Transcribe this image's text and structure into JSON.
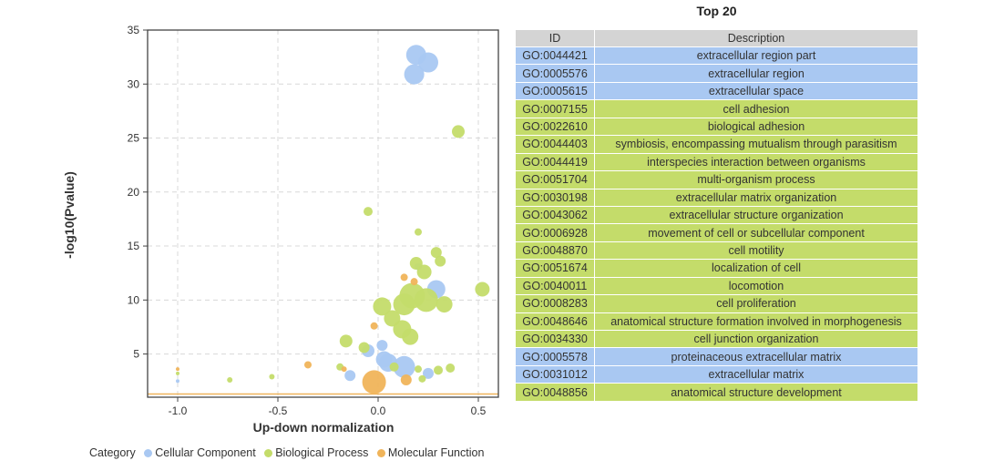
{
  "chart_data": {
    "type": "scatter",
    "xlabel": "Up-down normalization",
    "ylabel": "-log10(Pvalue)",
    "xlim": [
      -1.15,
      0.6
    ],
    "ylim": [
      1,
      35
    ],
    "x_ticks": [
      -1.0,
      -0.5,
      0.0,
      0.5
    ],
    "x_tick_labels": [
      "-1.0",
      "-0.5",
      "0.0",
      "0.5"
    ],
    "y_ticks": [
      5,
      10,
      15,
      20,
      25,
      30,
      35
    ],
    "y_tick_labels": [
      "5",
      "10",
      "15",
      "20",
      "25",
      "30",
      "35"
    ],
    "threshold_y": 1.3,
    "grid": true,
    "legend_title": "Category",
    "legend_position": "bottom-left",
    "series": [
      {
        "name": "Cellular Component",
        "color": "#a9c8f2",
        "points": [
          {
            "x": 0.19,
            "y": 32.7,
            "size": 11
          },
          {
            "x": 0.25,
            "y": 32.0,
            "size": 11
          },
          {
            "x": 0.18,
            "y": 30.9,
            "size": 11
          },
          {
            "x": 0.2,
            "y": 13.1,
            "size": 4
          },
          {
            "x": 0.29,
            "y": 11.0,
            "size": 10
          },
          {
            "x": 0.02,
            "y": 5.8,
            "size": 6
          },
          {
            "x": -0.05,
            "y": 5.3,
            "size": 7
          },
          {
            "x": 0.03,
            "y": 4.5,
            "size": 9
          },
          {
            "x": 0.05,
            "y": 4.2,
            "size": 10
          },
          {
            "x": 0.13,
            "y": 3.8,
            "size": 12
          },
          {
            "x": -0.14,
            "y": 3.0,
            "size": 6
          },
          {
            "x": 0.25,
            "y": 3.2,
            "size": 6
          },
          {
            "x": -1.0,
            "y": 2.5,
            "size": 2
          }
        ]
      },
      {
        "name": "Biological Process",
        "color": "#c4dc6a",
        "points": [
          {
            "x": 0.4,
            "y": 25.6,
            "size": 7
          },
          {
            "x": -0.05,
            "y": 18.2,
            "size": 5
          },
          {
            "x": 0.2,
            "y": 16.3,
            "size": 4
          },
          {
            "x": 0.29,
            "y": 14.4,
            "size": 6
          },
          {
            "x": 0.31,
            "y": 13.6,
            "size": 6
          },
          {
            "x": 0.19,
            "y": 13.4,
            "size": 7
          },
          {
            "x": 0.23,
            "y": 12.6,
            "size": 8
          },
          {
            "x": 0.52,
            "y": 11.0,
            "size": 8
          },
          {
            "x": 0.17,
            "y": 10.4,
            "size": 14
          },
          {
            "x": 0.24,
            "y": 10.0,
            "size": 13
          },
          {
            "x": 0.13,
            "y": 9.6,
            "size": 12
          },
          {
            "x": 0.33,
            "y": 9.6,
            "size": 9
          },
          {
            "x": 0.02,
            "y": 9.4,
            "size": 10
          },
          {
            "x": 0.07,
            "y": 8.3,
            "size": 9
          },
          {
            "x": 0.12,
            "y": 7.3,
            "size": 10
          },
          {
            "x": 0.16,
            "y": 6.6,
            "size": 9
          },
          {
            "x": -0.16,
            "y": 6.2,
            "size": 7
          },
          {
            "x": -0.07,
            "y": 5.6,
            "size": 6
          },
          {
            "x": 0.08,
            "y": 3.8,
            "size": 5
          },
          {
            "x": 0.2,
            "y": 3.6,
            "size": 4
          },
          {
            "x": 0.3,
            "y": 3.5,
            "size": 5
          },
          {
            "x": 0.36,
            "y": 3.7,
            "size": 5
          },
          {
            "x": -0.19,
            "y": 3.8,
            "size": 4
          },
          {
            "x": -0.53,
            "y": 2.9,
            "size": 3
          },
          {
            "x": -0.74,
            "y": 2.6,
            "size": 3
          },
          {
            "x": -1.0,
            "y": 3.2,
            "size": 2
          },
          {
            "x": 0.22,
            "y": 2.7,
            "size": 4
          }
        ]
      },
      {
        "name": "Molecular Function",
        "color": "#f0b45a",
        "points": [
          {
            "x": 0.13,
            "y": 12.1,
            "size": 4
          },
          {
            "x": 0.18,
            "y": 11.7,
            "size": 4
          },
          {
            "x": -0.02,
            "y": 7.6,
            "size": 4
          },
          {
            "x": -0.35,
            "y": 4.0,
            "size": 4
          },
          {
            "x": -0.17,
            "y": 3.6,
            "size": 3
          },
          {
            "x": -0.02,
            "y": 2.4,
            "size": 13
          },
          {
            "x": 0.14,
            "y": 2.6,
            "size": 6
          },
          {
            "x": -1.0,
            "y": 3.6,
            "size": 2
          }
        ]
      }
    ]
  },
  "table": {
    "title": "Top 20",
    "headers": [
      "ID",
      "Description"
    ],
    "rows": [
      {
        "id": "GO:0044421",
        "desc": "extracellular region part",
        "cat": "cc"
      },
      {
        "id": "GO:0005576",
        "desc": "extracellular region",
        "cat": "cc"
      },
      {
        "id": "GO:0005615",
        "desc": "extracellular space",
        "cat": "cc"
      },
      {
        "id": "GO:0007155",
        "desc": "cell adhesion",
        "cat": "bp"
      },
      {
        "id": "GO:0022610",
        "desc": "biological adhesion",
        "cat": "bp"
      },
      {
        "id": "GO:0044403",
        "desc": "symbiosis, encompassing mutualism through parasitism",
        "cat": "bp"
      },
      {
        "id": "GO:0044419",
        "desc": "interspecies interaction between organisms",
        "cat": "bp"
      },
      {
        "id": "GO:0051704",
        "desc": "multi-organism process",
        "cat": "bp"
      },
      {
        "id": "GO:0030198",
        "desc": "extracellular matrix organization",
        "cat": "bp"
      },
      {
        "id": "GO:0043062",
        "desc": "extracellular structure organization",
        "cat": "bp"
      },
      {
        "id": "GO:0006928",
        "desc": "movement of cell or subcellular component",
        "cat": "bp"
      },
      {
        "id": "GO:0048870",
        "desc": "cell motility",
        "cat": "bp"
      },
      {
        "id": "GO:0051674",
        "desc": "localization of cell",
        "cat": "bp"
      },
      {
        "id": "GO:0040011",
        "desc": "locomotion",
        "cat": "bp"
      },
      {
        "id": "GO:0008283",
        "desc": "cell proliferation",
        "cat": "bp"
      },
      {
        "id": "GO:0048646",
        "desc": "anatomical structure formation involved in morphogenesis",
        "cat": "bp"
      },
      {
        "id": "GO:0034330",
        "desc": "cell junction organization",
        "cat": "bp"
      },
      {
        "id": "GO:0005578",
        "desc": "proteinaceous extracellular matrix",
        "cat": "cc"
      },
      {
        "id": "GO:0031012",
        "desc": "extracellular matrix",
        "cat": "cc"
      },
      {
        "id": "GO:0048856",
        "desc": "anatomical structure development",
        "cat": "bp"
      }
    ]
  }
}
